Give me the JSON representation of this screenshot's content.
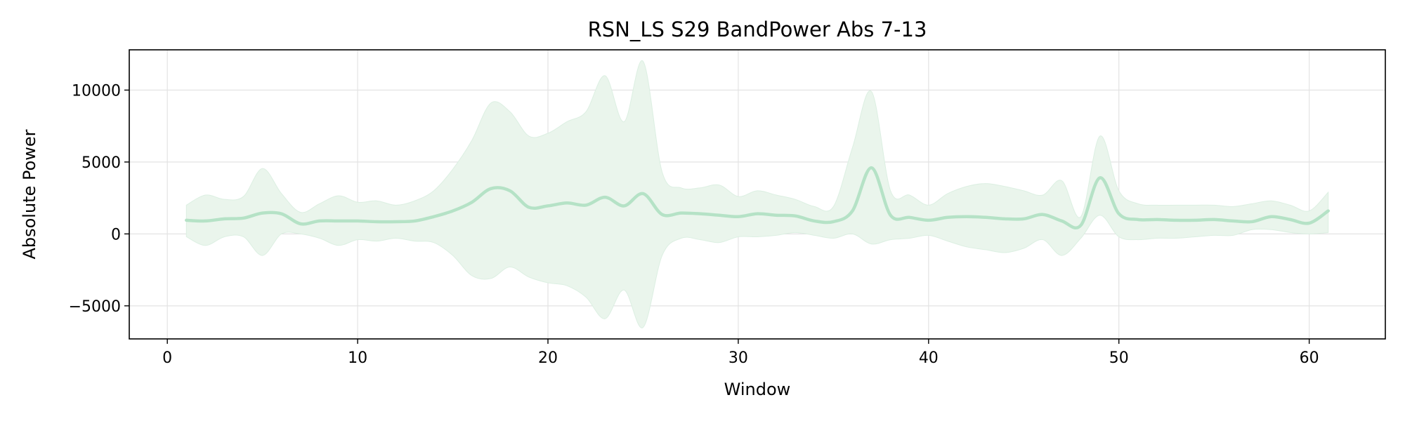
{
  "chart_data": {
    "type": "line",
    "title": "RSN_LS S29 BandPower Abs 7-13",
    "xlabel": "Window",
    "ylabel": "Absolute Power",
    "xlim": [
      -2,
      64
    ],
    "ylim": [
      -7300,
      12800
    ],
    "x_ticks": [
      0,
      10,
      20,
      30,
      40,
      50,
      60
    ],
    "y_ticks": [
      -5000,
      0,
      5000,
      10000
    ],
    "y_tick_labels": [
      "−5000",
      "0",
      "5000",
      "10000"
    ],
    "grid": true,
    "colors": {
      "line": "#b5e2c6",
      "band": "#eaf5ec",
      "band_edge": "#dcefe2",
      "frame": "#000000",
      "grid": "#e3e3e3"
    },
    "series": [
      {
        "x": [
          1,
          2,
          3,
          4,
          5,
          6,
          7,
          8,
          9,
          10,
          11,
          12,
          13,
          14,
          15,
          16,
          17,
          18,
          19,
          20,
          21,
          22,
          23,
          24,
          25,
          26,
          27,
          28,
          29,
          30,
          31,
          32,
          33,
          34,
          35,
          36,
          37,
          38,
          39,
          40,
          41,
          42,
          43,
          44,
          45,
          46,
          47,
          48,
          49,
          50,
          51,
          52,
          53,
          54,
          55,
          56,
          57,
          58,
          59,
          60,
          61
        ],
        "mean": [
          950,
          900,
          1050,
          1100,
          1450,
          1400,
          700,
          900,
          900,
          900,
          850,
          850,
          900,
          1200,
          1600,
          2200,
          3150,
          3000,
          1850,
          1950,
          2150,
          2000,
          2550,
          1950,
          2800,
          1350,
          1450,
          1400,
          1300,
          1200,
          1400,
          1300,
          1250,
          900,
          850,
          1600,
          4600,
          1300,
          1150,
          950,
          1150,
          1200,
          1150,
          1050,
          1050,
          1350,
          900,
          600,
          3900,
          1400,
          1000,
          1000,
          950,
          950,
          1000,
          900,
          850,
          1200,
          1000,
          750,
          1600
        ],
        "upper": [
          2000,
          2700,
          2400,
          2600,
          4550,
          2800,
          1500,
          2100,
          2650,
          2200,
          2300,
          2000,
          2300,
          3000,
          4500,
          6500,
          9100,
          8500,
          6800,
          7000,
          7800,
          8500,
          11000,
          7800,
          12000,
          4300,
          3200,
          3200,
          3400,
          2600,
          3000,
          2700,
          2400,
          1900,
          1900,
          6000,
          9900,
          3000,
          2700,
          2000,
          2800,
          3300,
          3500,
          3300,
          3000,
          2700,
          3700,
          1200,
          6800,
          3000,
          2100,
          2000,
          2000,
          2000,
          2000,
          1900,
          2100,
          2300,
          2000,
          1600,
          2900
        ],
        "lower": [
          -200,
          -800,
          -200,
          -200,
          -1500,
          0,
          0,
          -300,
          -800,
          -400,
          -500,
          -300,
          -500,
          -600,
          -1500,
          -2900,
          -3100,
          -2300,
          -3000,
          -3400,
          -3600,
          -4400,
          -5900,
          -3900,
          -6500,
          -1500,
          -300,
          -400,
          -600,
          -200,
          -200,
          -100,
          100,
          -100,
          -300,
          0,
          -700,
          -400,
          -300,
          -100,
          -500,
          -900,
          -1100,
          -1300,
          -1000,
          -400,
          -1500,
          -300,
          1300,
          -200,
          -400,
          -300,
          -300,
          -200,
          -100,
          -100,
          300,
          300,
          100,
          0,
          100
        ]
      }
    ]
  }
}
